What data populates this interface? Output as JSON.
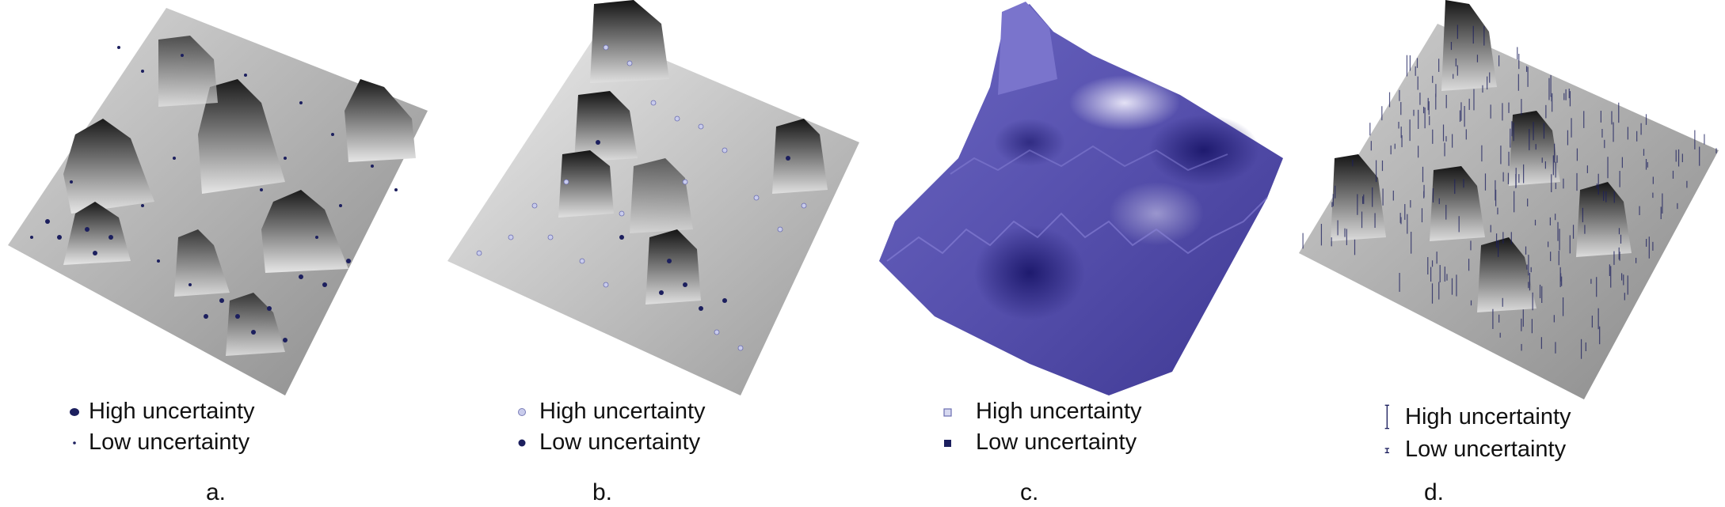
{
  "figure": {
    "panels": [
      {
        "id": "a",
        "caption": "a.",
        "legend": {
          "high": "High uncertainty",
          "low": "Low uncertainty"
        }
      },
      {
        "id": "b",
        "caption": "b.",
        "legend": {
          "high": "High uncertainty",
          "low": "Low uncertainty"
        }
      },
      {
        "id": "c",
        "caption": "c.",
        "legend": {
          "high": "High uncertainty",
          "low": "Low uncertainty"
        }
      },
      {
        "id": "d",
        "caption": "d.",
        "legend": {
          "high": "High uncertainty",
          "low": "Low uncertainty"
        }
      }
    ]
  },
  "colors": {
    "surface_dark": "#2a2a2a",
    "surface_light": "#f2f2f2",
    "glyph_navy": "#1c1f5e",
    "glyph_light": "#c9ccec",
    "surface_purple": "#5a55b0",
    "surface_purple_dark": "#1e1a6e",
    "surface_purple_light": "#e4e2f5"
  }
}
